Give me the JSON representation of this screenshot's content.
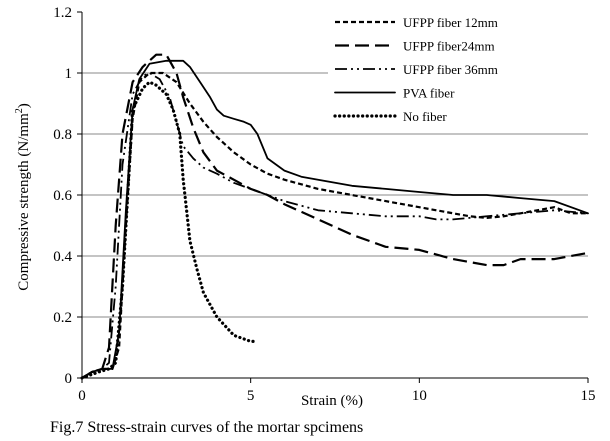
{
  "chart_data": {
    "type": "line",
    "title": "",
    "xlabel": "Strain (%)",
    "ylabel": "Compressive strength (N/mm²)",
    "ylabel_main": "Compressive strength (N/mm",
    "ylabel_sup": "2",
    "ylabel_end": ")",
    "xlim": [
      0,
      15
    ],
    "ylim": [
      0,
      1.2
    ],
    "x_ticks": [
      0,
      5,
      10,
      15
    ],
    "x_tick_labels": [
      "0",
      "5",
      "10",
      "15"
    ],
    "y_ticks": [
      0,
      0.2,
      0.4,
      0.6,
      0.8,
      1,
      1.2
    ],
    "y_tick_labels": [
      "0",
      "0.2",
      "0.4",
      "0.6",
      "0.8",
      "1",
      "1.2"
    ],
    "grid": "horizontal",
    "legend_position": "top-right",
    "caption": "Fig.7 Stress-strain curves of the mortar spcimens",
    "series": [
      {
        "name": "UFPP fiber 12mm",
        "style": "short-dash",
        "x": [
          0,
          0.3,
          0.6,
          0.9,
          1.1,
          1.3,
          1.5,
          1.7,
          2.0,
          2.4,
          2.8,
          3.2,
          3.6,
          4.0,
          4.5,
          5.0,
          5.5,
          6.0,
          7.0,
          8.0,
          9.0,
          10.0,
          11.0,
          11.5,
          12.0,
          12.5,
          13.0,
          14.0,
          14.5,
          15.0
        ],
        "y": [
          0,
          0.02,
          0.03,
          0.03,
          0.1,
          0.5,
          0.85,
          0.97,
          1.0,
          1.0,
          0.97,
          0.9,
          0.84,
          0.79,
          0.74,
          0.7,
          0.67,
          0.65,
          0.62,
          0.6,
          0.58,
          0.56,
          0.54,
          0.53,
          0.525,
          0.53,
          0.54,
          0.56,
          0.54,
          0.54
        ]
      },
      {
        "name": "UFPP fiber24mm",
        "style": "long-dash",
        "x": [
          0,
          0.3,
          0.6,
          0.8,
          1.0,
          1.2,
          1.5,
          1.8,
          2.2,
          2.5,
          2.8,
          3.0,
          3.3,
          3.6,
          4.0,
          4.5,
          5.0,
          5.5,
          6.0,
          7.0,
          8.0,
          9.0,
          10.0,
          11.0,
          12.0,
          12.5,
          13.0,
          14.0,
          15.0
        ],
        "y": [
          0,
          0.02,
          0.03,
          0.1,
          0.5,
          0.8,
          0.97,
          1.02,
          1.06,
          1.06,
          1.0,
          0.92,
          0.82,
          0.74,
          0.68,
          0.65,
          0.62,
          0.6,
          0.57,
          0.52,
          0.47,
          0.43,
          0.42,
          0.39,
          0.37,
          0.37,
          0.39,
          0.39,
          0.41
        ]
      },
      {
        "name": "UFPP fiber 36mm",
        "style": "dash-dot-dot",
        "x": [
          0,
          0.3,
          0.6,
          0.8,
          1.0,
          1.2,
          1.5,
          1.8,
          2.0,
          2.3,
          2.6,
          2.8,
          3.0,
          3.3,
          3.6,
          4.0,
          4.5,
          5.0,
          6.0,
          7.0,
          8.0,
          9.0,
          10.0,
          10.5,
          11.0,
          12.0,
          13.0,
          14.0,
          15.0
        ],
        "y": [
          0,
          0.02,
          0.03,
          0.05,
          0.3,
          0.7,
          0.93,
          0.99,
          1.0,
          0.98,
          0.92,
          0.84,
          0.76,
          0.72,
          0.69,
          0.67,
          0.64,
          0.62,
          0.58,
          0.55,
          0.54,
          0.53,
          0.53,
          0.52,
          0.52,
          0.53,
          0.54,
          0.55,
          0.54
        ]
      },
      {
        "name": "PVA fiber",
        "style": "solid",
        "x": [
          0,
          0.3,
          0.6,
          0.9,
          1.1,
          1.3,
          1.5,
          1.7,
          2.0,
          2.5,
          3.0,
          3.2,
          3.5,
          3.8,
          4.0,
          4.2,
          4.5,
          4.8,
          5.0,
          5.2,
          5.5,
          6.0,
          6.5,
          7.0,
          7.5,
          8.0,
          9.0,
          10.0,
          11.0,
          12.0,
          13.0,
          14.0,
          15.0
        ],
        "y": [
          0,
          0.02,
          0.03,
          0.03,
          0.15,
          0.55,
          0.88,
          0.98,
          1.03,
          1.04,
          1.04,
          1.02,
          0.97,
          0.92,
          0.88,
          0.86,
          0.85,
          0.84,
          0.83,
          0.8,
          0.72,
          0.68,
          0.66,
          0.65,
          0.64,
          0.63,
          0.62,
          0.61,
          0.6,
          0.6,
          0.59,
          0.58,
          0.54
        ]
      },
      {
        "name": "No fiber",
        "style": "dotted",
        "x": [
          0,
          0.5,
          0.8,
          1.0,
          1.2,
          1.5,
          1.8,
          2.0,
          2.2,
          2.5,
          2.7,
          2.9,
          3.0,
          3.1,
          3.2,
          3.4,
          3.6,
          4.0,
          4.5,
          5.0,
          5.2
        ],
        "y": [
          0,
          0.02,
          0.03,
          0.05,
          0.3,
          0.88,
          0.95,
          0.97,
          0.96,
          0.93,
          0.88,
          0.8,
          0.65,
          0.55,
          0.45,
          0.36,
          0.28,
          0.2,
          0.14,
          0.12,
          0.12
        ]
      }
    ]
  }
}
